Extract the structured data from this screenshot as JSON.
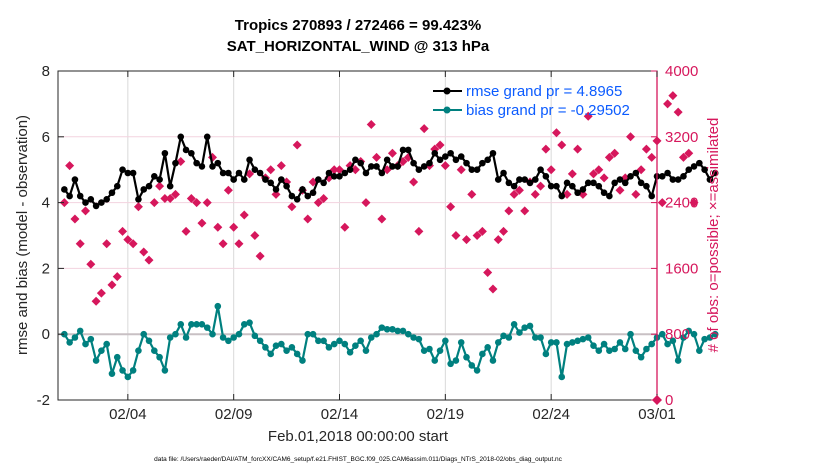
{
  "chart_data": {
    "type": "line",
    "title": [
      "Tropics 270893 / 272466 = 99.423%",
      "SAT_HORIZONTAL_WIND @ 313 hPa"
    ],
    "xlabel": "Feb.01,2018 00:00:00 start",
    "ylabel": "rmse and bias (model - observation)",
    "ylabel_right": "# of obs: o=possible; ×=assimilated",
    "ylim": [
      -2,
      8
    ],
    "ylim_right": [
      0,
      4000
    ],
    "yticks": [
      "8",
      "6",
      "4",
      "2",
      "0",
      "-2"
    ],
    "yticks_right": [
      "4000",
      "3200",
      "2400",
      "1600",
      "800",
      "0"
    ],
    "xtick_labels": [
      "02/04",
      "02/09",
      "02/14",
      "02/19",
      "02/24",
      "03/01"
    ],
    "xtick_days": [
      3,
      8,
      13,
      18,
      23,
      28
    ],
    "x_start_day": -0.3,
    "x_end_day": 28,
    "time_step_days": 0.25,
    "legend": {
      "placement": "top-right",
      "entries": [
        {
          "label": "rmse grand pr = 4.8965",
          "color": "#000000"
        },
        {
          "label": "bias grand pr = -0.29502",
          "color": "#00807f"
        }
      ]
    },
    "footnote": "data file: /Users/raeder/DAI/ATM_forcXX/CAM6_setup/f.e21.FHIST_BGC.f09_025.CAM6assim.011/Diags_NTrS_2018-02/obs_diag_output.nc",
    "colors": {
      "rmse": "#000000",
      "bias": "#00807f",
      "obs": "#d6175c",
      "zero_line": "#c8c0c4",
      "grid": "#d9d9d9"
    },
    "series": [
      {
        "name": "rmse",
        "values": [
          4.4,
          4.2,
          4.7,
          4.2,
          4.0,
          4.1,
          3.9,
          4.0,
          4.1,
          4.3,
          4.5,
          5.0,
          4.9,
          4.9,
          4.1,
          4.4,
          4.5,
          4.8,
          4.7,
          5.5,
          4.5,
          5.2,
          6.0,
          5.6,
          5.5,
          5.2,
          5.1,
          6.0,
          5.1,
          5.2,
          4.9,
          4.9,
          4.7,
          4.9,
          4.7,
          5.3,
          5.0,
          4.9,
          4.7,
          4.6,
          4.4,
          4.7,
          4.5,
          4.2,
          4.1,
          4.4,
          4.2,
          4.3,
          4.7,
          4.6,
          4.9,
          4.8,
          4.8,
          4.9,
          5.0,
          5.3,
          5.2,
          4.9,
          5.1,
          5.1,
          4.9,
          5.3,
          5.1,
          5.1,
          5.6,
          5.6,
          5.2,
          5.0,
          5.1,
          5.2,
          5.5,
          5.3,
          5.4,
          5.5,
          5.3,
          5.4,
          5.2,
          5.0,
          5.0,
          5.2,
          5.3,
          5.5,
          4.7,
          4.9,
          4.6,
          4.5,
          4.7,
          4.7,
          4.6,
          4.7,
          5.0,
          4.8,
          4.5,
          4.5,
          4.2,
          4.6,
          4.5,
          4.3,
          4.4,
          4.6,
          4.6,
          4.5,
          4.3,
          4.2,
          4.6,
          4.7,
          4.6,
          4.8,
          4.9,
          4.6,
          4.5,
          4.2,
          4.8,
          4.8,
          4.9,
          4.7,
          4.7,
          4.8,
          5.0,
          5.1,
          5.2,
          5.0,
          4.7,
          4.9
        ],
        "color": "#000000"
      },
      {
        "name": "bias",
        "values": [
          0.0,
          -0.25,
          -0.1,
          0.1,
          -0.3,
          -0.15,
          -0.8,
          -0.5,
          -0.3,
          -1.2,
          -0.7,
          -1.1,
          -1.3,
          -1.1,
          -0.5,
          0.0,
          -0.2,
          -0.5,
          -0.7,
          -1.1,
          -0.1,
          0.0,
          0.3,
          -0.1,
          0.3,
          0.3,
          0.3,
          0.2,
          0.0,
          0.85,
          -0.1,
          -0.2,
          -0.1,
          0.0,
          0.3,
          0.35,
          -0.05,
          -0.2,
          -0.4,
          -0.6,
          -0.35,
          -0.3,
          -0.5,
          -0.4,
          -0.6,
          -0.8,
          0.0,
          0.0,
          -0.2,
          -0.2,
          -0.4,
          -0.3,
          -0.2,
          -0.3,
          -0.55,
          -0.35,
          -0.2,
          -0.5,
          -0.1,
          0.0,
          0.2,
          0.15,
          0.15,
          0.1,
          0.1,
          0.0,
          -0.1,
          -0.15,
          -0.5,
          -0.45,
          -0.8,
          -0.5,
          -0.2,
          -0.9,
          -0.8,
          -0.25,
          -0.7,
          -0.95,
          -1.1,
          -0.6,
          -0.4,
          -0.8,
          -0.25,
          -0.05,
          -0.1,
          0.3,
          0.05,
          0.2,
          0.25,
          -0.1,
          -0.1,
          -0.6,
          -0.25,
          -0.25,
          -1.3,
          -0.3,
          -0.25,
          -0.2,
          -0.15,
          -0.1,
          -0.35,
          -0.5,
          -0.3,
          -0.5,
          -0.45,
          -0.25,
          -0.45,
          0.0,
          -0.5,
          -0.7,
          -0.45,
          -0.3,
          -0.1,
          0.0,
          -0.3,
          -0.2,
          -0.8,
          -0.1,
          0.1,
          0.0,
          -0.5,
          -0.15,
          -0.1,
          0.0
        ],
        "color": "#00807f"
      },
      {
        "name": "obs_possible",
        "axis": "right",
        "values": [
          2400,
          2850,
          2200,
          1900,
          2300,
          1650,
          1200,
          1300,
          1900,
          1400,
          1500,
          2050,
          1950,
          1900,
          2350,
          1800,
          1700,
          2400,
          2600,
          2450,
          2450,
          2500,
          2900,
          2050,
          2450,
          2400,
          2150,
          2400,
          2950,
          2100,
          1900,
          2550,
          2100,
          1900,
          2250,
          2750,
          2000,
          1750,
          2700,
          2800,
          2500,
          2850,
          2650,
          2350,
          3100,
          2550,
          2200,
          2650,
          2400,
          2450,
          2700,
          2800,
          2800,
          2100,
          2850,
          2800,
          2900,
          2400,
          3350,
          2950,
          2200,
          2800,
          3000,
          2850,
          2900,
          2950,
          2650,
          2050,
          3300,
          2850,
          3050,
          3100,
          2850,
          2350,
          2000,
          2800,
          1950,
          2500,
          2000,
          2050,
          1550,
          1350,
          1950,
          2050,
          2300,
          2500,
          2550,
          2300,
          2650,
          2500,
          2600,
          3050,
          2800,
          3250,
          3100,
          2500,
          2750,
          3050,
          2500,
          3450,
          2750,
          2800,
          2700,
          2950,
          3000,
          2550,
          2700,
          3200,
          2500,
          2800,
          3050,
          2950,
          3150,
          2400,
          3600,
          3700,
          3500,
          2950,
          3000,
          2400
        ],
        "color": "#d6175c"
      }
    ]
  }
}
